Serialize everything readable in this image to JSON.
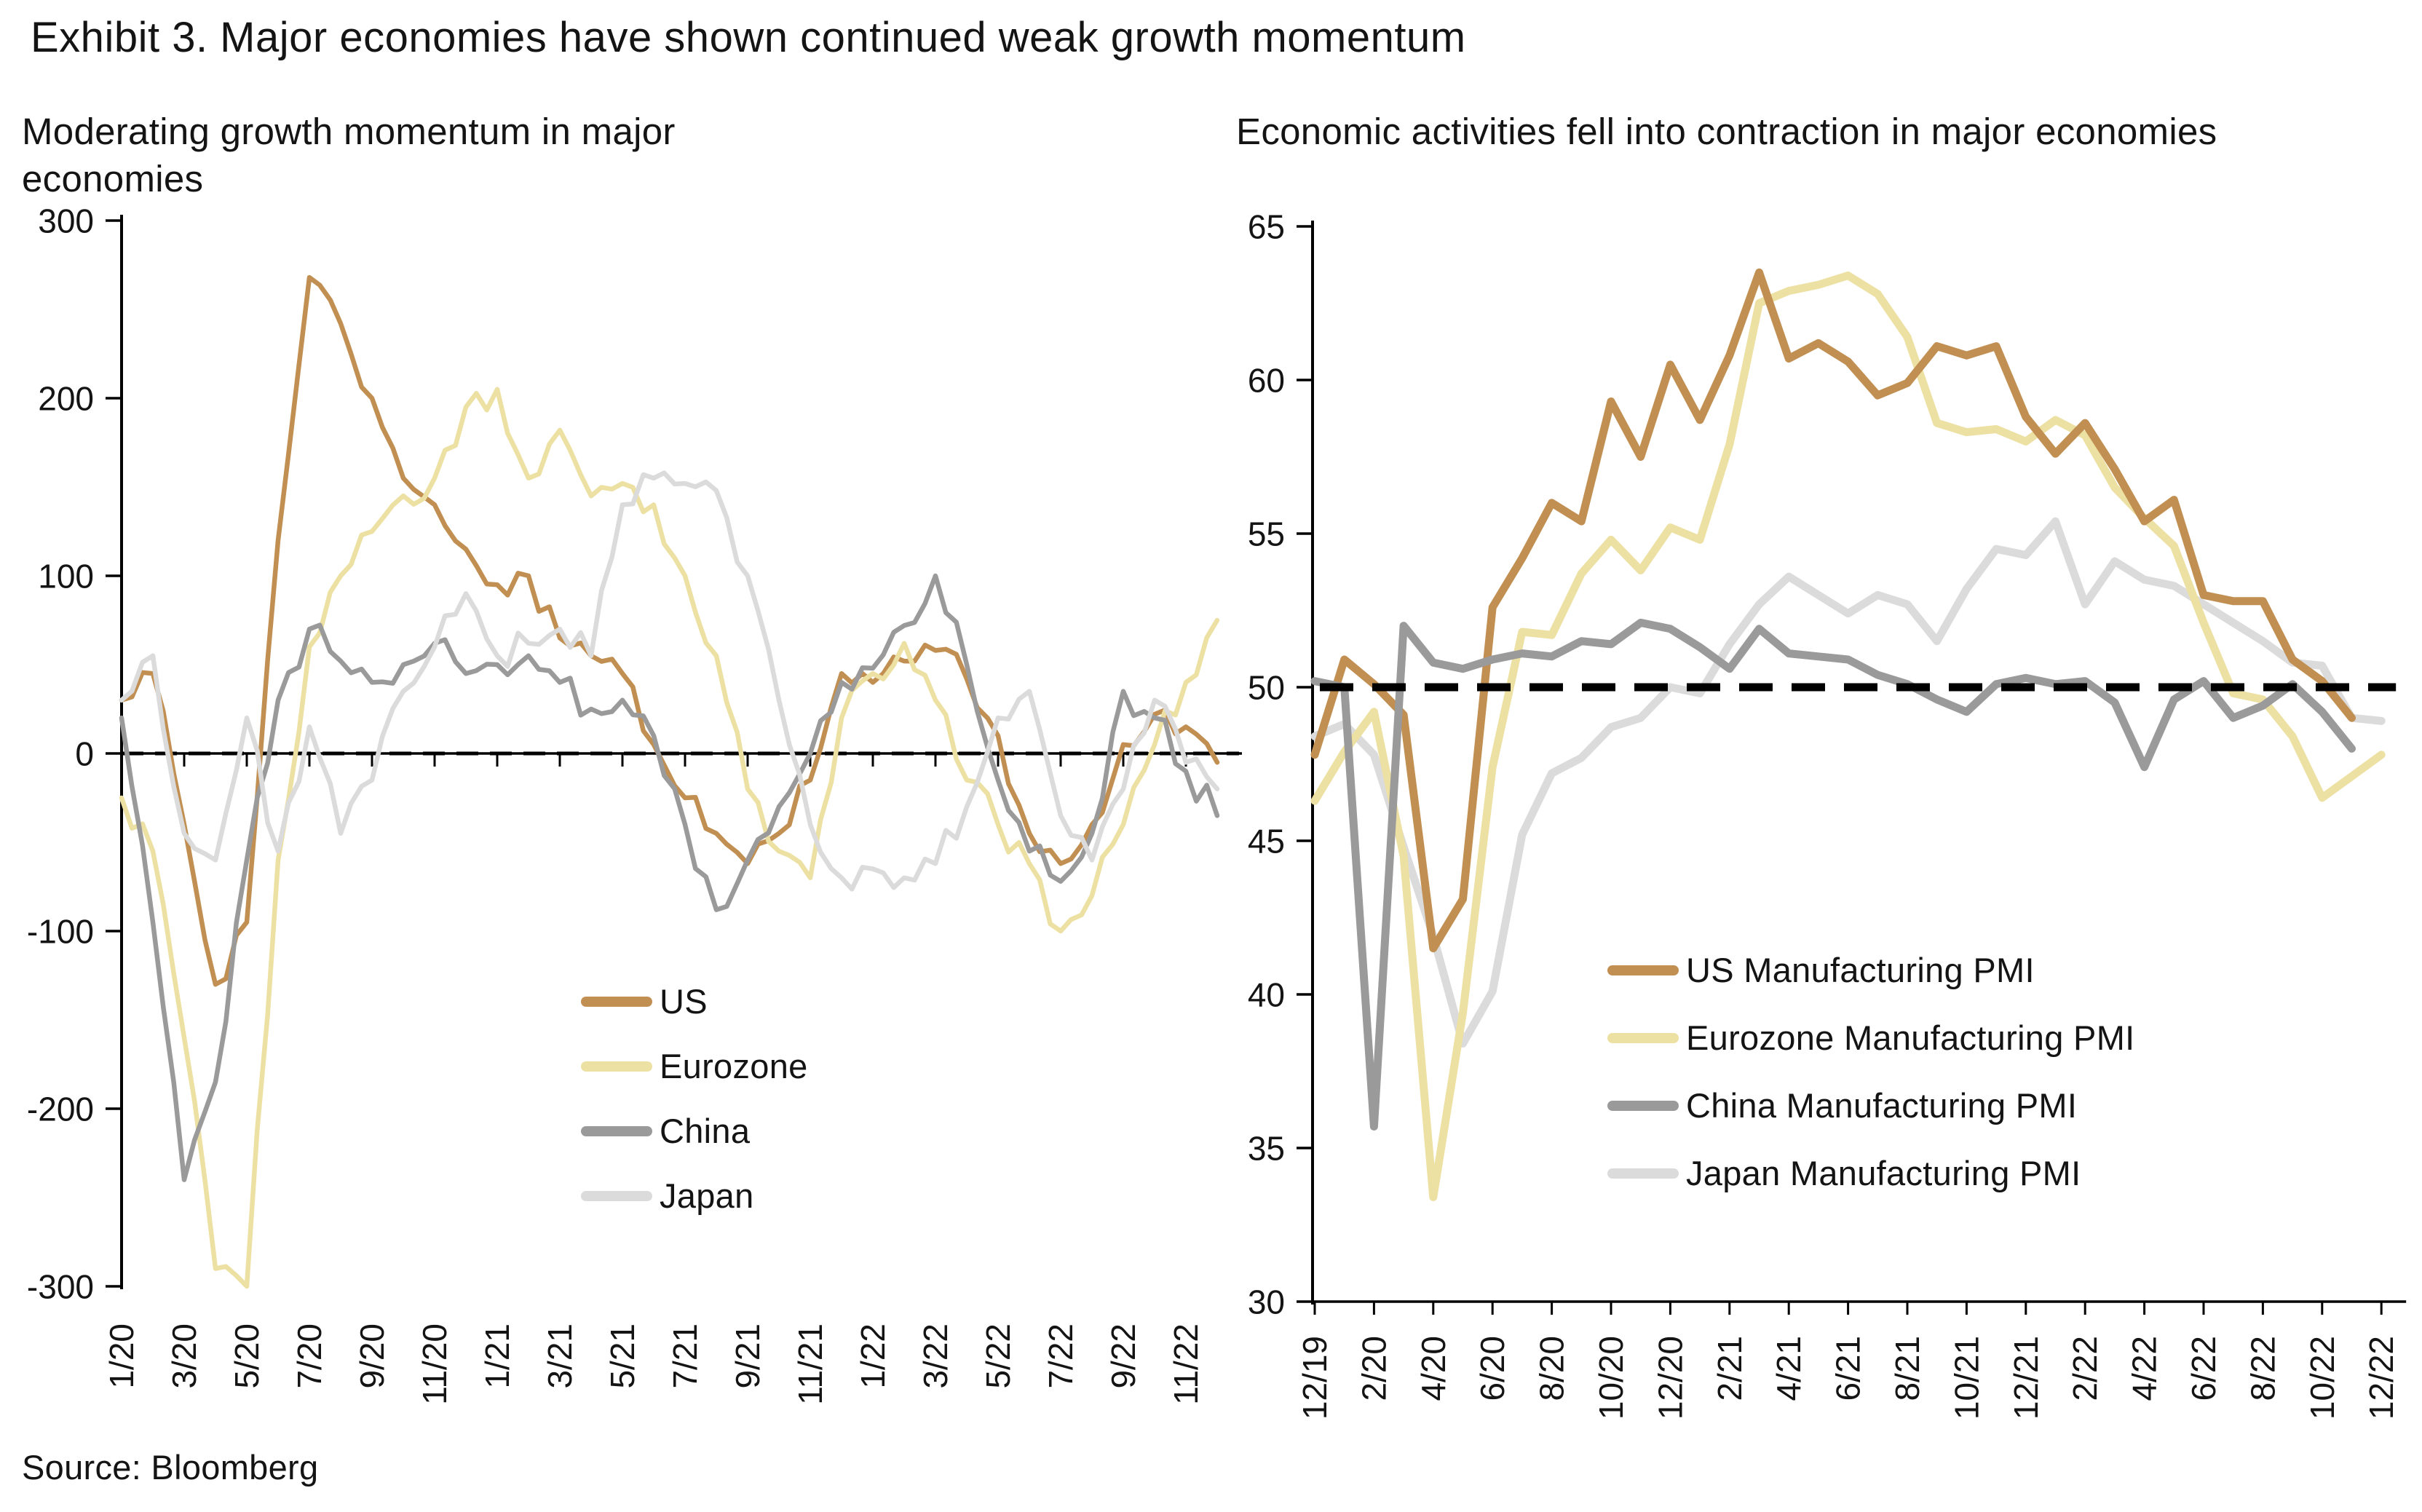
{
  "page": {
    "title": "Exhibit 3. Major economies have shown continued weak growth momentum",
    "source": "Source: Bloomberg"
  },
  "chart_data": [
    {
      "type": "line",
      "title": "Moderating growth momentum in major economies",
      "xlabel": "",
      "ylabel": "",
      "ylim": [
        -300,
        300
      ],
      "ytick_step": 100,
      "grid": false,
      "legend_position": "inside-lower-center",
      "ref_line": {
        "value": 0,
        "style": "dashed",
        "color": "#000000"
      },
      "x_tick_labels": [
        "1/20",
        "3/20",
        "5/20",
        "7/20",
        "9/20",
        "11/20",
        "1/21",
        "3/21",
        "5/21",
        "7/21",
        "9/21",
        "11/21",
        "1/22",
        "3/22",
        "5/22",
        "7/22",
        "9/22",
        "11/22"
      ],
      "x": [
        "1/20",
        "2/20",
        "3/20",
        "4/20",
        "5/20",
        "6/20",
        "7/20",
        "8/20",
        "9/20",
        "10/20",
        "11/20",
        "12/20",
        "1/21",
        "2/21",
        "3/21",
        "4/21",
        "5/21",
        "6/21",
        "7/21",
        "8/21",
        "9/21",
        "10/21",
        "11/21",
        "12/21",
        "1/22",
        "2/22",
        "3/22",
        "4/22",
        "5/22",
        "6/22",
        "7/22",
        "8/22",
        "9/22",
        "10/22",
        "11/22",
        "12/22"
      ],
      "series": [
        {
          "name": "US",
          "color": "#C18F51",
          "values": [
            30,
            45,
            -40,
            -130,
            -95,
            120,
            268,
            242,
            200,
            155,
            140,
            115,
            95,
            100,
            65,
            55,
            45,
            5,
            -25,
            -45,
            -62,
            -45,
            -15,
            45,
            40,
            52,
            58,
            42,
            10,
            -45,
            -62,
            -40,
            5,
            22,
            15,
            -5
          ]
        },
        {
          "name": "Eurozone",
          "color": "#EDE0A3",
          "values": [
            -25,
            -55,
            -160,
            -290,
            -300,
            -60,
            60,
            100,
            125,
            145,
            155,
            195,
            205,
            155,
            182,
            145,
            152,
            140,
            100,
            55,
            -20,
            -55,
            -70,
            20,
            45,
            62,
            30,
            -15,
            -40,
            -62,
            -100,
            -80,
            -40,
            5,
            40,
            75
          ]
        },
        {
          "name": "China",
          "color": "#9A9A9A",
          "values": [
            20,
            -95,
            -240,
            -185,
            -60,
            30,
            70,
            52,
            40,
            50,
            62,
            45,
            50,
            55,
            40,
            25,
            30,
            10,
            -40,
            -88,
            -60,
            -30,
            0,
            40,
            48,
            72,
            100,
            50,
            -15,
            -55,
            -72,
            -45,
            35,
            20,
            -10,
            -35
          ]
        },
        {
          "name": "Japan",
          "color": "#DBDBDB",
          "values": [
            30,
            55,
            -45,
            -60,
            20,
            -55,
            15,
            -45,
            -15,
            35,
            60,
            90,
            55,
            62,
            70,
            55,
            140,
            155,
            152,
            148,
            100,
            30,
            -40,
            -70,
            -65,
            -70,
            -62,
            -30,
            20,
            35,
            -35,
            -60,
            -20,
            30,
            -5,
            -20
          ]
        }
      ]
    },
    {
      "type": "line",
      "title": "Economic activities fell into contraction in major economies",
      "xlabel": "",
      "ylabel": "",
      "ylim": [
        30,
        65
      ],
      "ytick_step": 5,
      "grid": false,
      "legend_position": "inside-lower-right",
      "ref_line": {
        "value": 50,
        "style": "dashed",
        "color": "#000000"
      },
      "x_tick_labels": [
        "12/19",
        "2/20",
        "4/20",
        "6/20",
        "8/20",
        "10/20",
        "12/20",
        "2/21",
        "4/21",
        "6/21",
        "8/21",
        "10/21",
        "12/21",
        "2/22",
        "4/22",
        "6/22",
        "8/22",
        "10/22",
        "12/22"
      ],
      "x": [
        "12/19",
        "1/20",
        "2/20",
        "3/20",
        "4/20",
        "5/20",
        "6/20",
        "7/20",
        "8/20",
        "9/20",
        "10/20",
        "11/20",
        "12/20",
        "1/21",
        "2/21",
        "3/21",
        "4/21",
        "5/21",
        "6/21",
        "7/21",
        "8/21",
        "9/21",
        "10/21",
        "11/21",
        "12/21",
        "1/22",
        "2/22",
        "3/22",
        "4/22",
        "5/22",
        "6/22",
        "7/22",
        "8/22",
        "9/22",
        "10/22",
        "11/22",
        "12/22"
      ],
      "series": [
        {
          "name": "US Manufacturing PMI",
          "color": "#C18F51",
          "values": [
            47.8,
            50.9,
            50.1,
            49.1,
            41.5,
            43.1,
            52.6,
            54.2,
            56.0,
            55.4,
            59.3,
            57.5,
            60.5,
            58.7,
            60.8,
            63.5,
            60.7,
            61.2,
            60.6,
            59.5,
            59.9,
            61.1,
            60.8,
            61.1,
            58.8,
            57.6,
            58.6,
            57.1,
            55.4,
            56.1,
            53.0,
            52.8,
            52.8,
            50.9,
            50.2,
            49.0,
            null
          ]
        },
        {
          "name": "Eurozone Manufacturing PMI",
          "color": "#EDE0A3",
          "values": [
            46.3,
            47.9,
            49.2,
            44.5,
            33.4,
            39.4,
            47.4,
            51.8,
            51.7,
            53.7,
            54.8,
            53.8,
            55.2,
            54.8,
            57.9,
            62.5,
            62.9,
            63.1,
            63.4,
            62.8,
            61.4,
            58.6,
            58.3,
            58.4,
            58.0,
            58.7,
            58.2,
            56.5,
            55.5,
            54.6,
            52.1,
            49.8,
            49.6,
            48.4,
            46.4,
            47.1,
            47.8
          ]
        },
        {
          "name": "China Manufacturing PMI",
          "color": "#9A9A9A",
          "values": [
            50.2,
            50.0,
            35.7,
            52.0,
            50.8,
            50.6,
            50.9,
            51.1,
            51.0,
            51.5,
            51.4,
            52.1,
            51.9,
            51.3,
            50.6,
            51.9,
            51.1,
            51.0,
            50.9,
            50.4,
            50.1,
            49.6,
            49.2,
            50.1,
            50.3,
            50.1,
            50.2,
            49.5,
            47.4,
            49.6,
            50.2,
            49.0,
            49.4,
            50.1,
            49.2,
            48.0,
            null
          ]
        },
        {
          "name": "Japan Manufacturing PMI",
          "color": "#DBDBDB",
          "values": [
            48.4,
            48.8,
            47.8,
            44.8,
            41.9,
            38.4,
            40.1,
            45.2,
            47.2,
            47.7,
            48.7,
            49.0,
            50.0,
            49.8,
            51.4,
            52.7,
            53.6,
            53.0,
            52.4,
            53.0,
            52.7,
            51.5,
            53.2,
            54.5,
            54.3,
            55.4,
            52.7,
            54.1,
            53.5,
            53.3,
            52.7,
            52.1,
            51.5,
            50.8,
            50.7,
            49.0,
            48.9
          ]
        }
      ]
    }
  ]
}
